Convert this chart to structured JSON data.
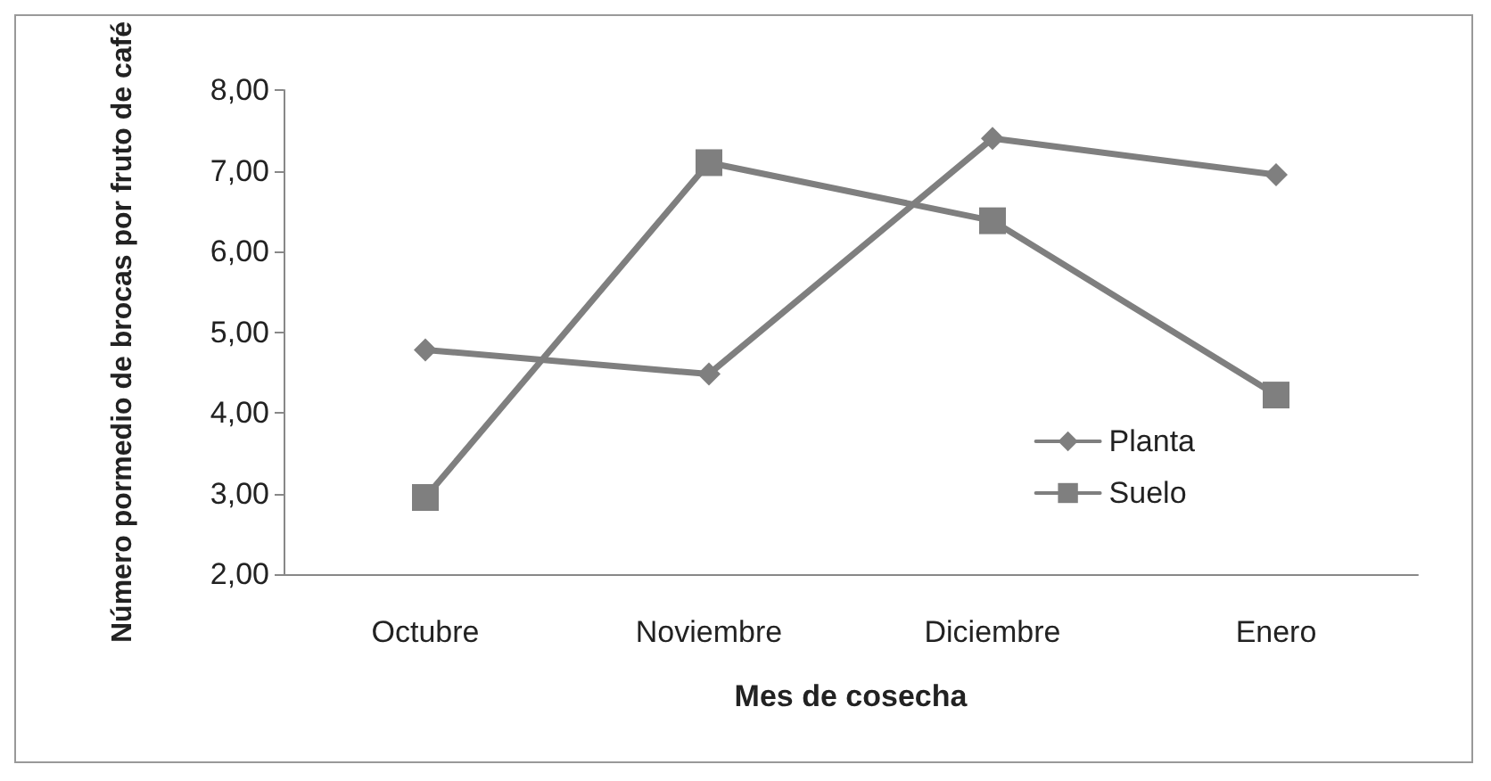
{
  "chart_data": {
    "type": "line",
    "xlabel": "Mes de cosecha",
    "ylabel": "Número pormedio de brocas por fruto de café",
    "categories": [
      "Octubre",
      "Noviembre",
      "Diciembre",
      "Enero"
    ],
    "series": [
      {
        "name": "Planta",
        "color": "#7f7f7f",
        "marker": "diamond",
        "values": [
          4.78,
          4.48,
          7.4,
          6.95
        ]
      },
      {
        "name": "Suelo",
        "color": "#7f7f7f",
        "marker": "square",
        "values": [
          2.95,
          7.1,
          6.38,
          4.22
        ]
      }
    ],
    "ylim": [
      2,
      8
    ],
    "yticks": [
      {
        "value": 2,
        "label": "2,00"
      },
      {
        "value": 3,
        "label": "3,00"
      },
      {
        "value": 4,
        "label": "4,00"
      },
      {
        "value": 5,
        "label": "5,00"
      },
      {
        "value": 6,
        "label": "6,00"
      },
      {
        "value": 7,
        "label": "7,00"
      },
      {
        "value": 8,
        "label": "8,00"
      }
    ],
    "grid": false,
    "legend": "right",
    "line_style": "solid"
  }
}
